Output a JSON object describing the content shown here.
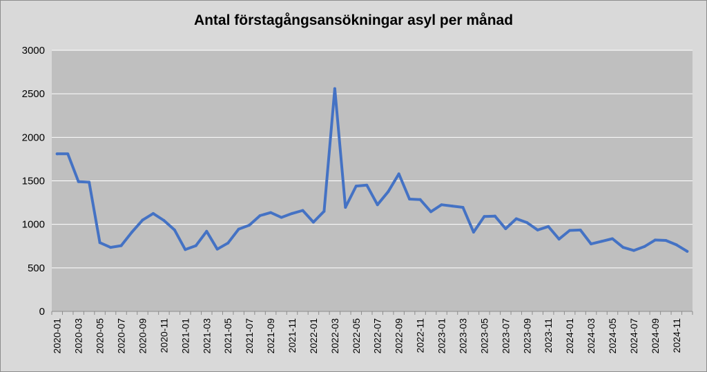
{
  "chart_data": {
    "type": "line",
    "title": "Antal förstagångsansökningar asyl per månad",
    "xlabel": "",
    "ylabel": "",
    "ylim": [
      0,
      3000
    ],
    "yticks": [
      0,
      500,
      1000,
      1500,
      2000,
      2500,
      3000
    ],
    "grid": true,
    "legend": "none",
    "colors": {
      "line": "#4472c4",
      "plot_bg": "#bfbfbf",
      "grid": "#ffffff"
    },
    "x": [
      "2020-01",
      "2020-02",
      "2020-03",
      "2020-04",
      "2020-05",
      "2020-06",
      "2020-07",
      "2020-08",
      "2020-09",
      "2020-10",
      "2020-11",
      "2020-12",
      "2021-01",
      "2021-02",
      "2021-03",
      "2021-04",
      "2021-05",
      "2021-06",
      "2021-07",
      "2021-08",
      "2021-09",
      "2021-10",
      "2021-11",
      "2021-12",
      "2022-01",
      "2022-02",
      "2022-03",
      "2022-04",
      "2022-05",
      "2022-06",
      "2022-07",
      "2022-08",
      "2022-09",
      "2022-10",
      "2022-11",
      "2022-12",
      "2023-01",
      "2023-02",
      "2023-03",
      "2023-04",
      "2023-05",
      "2023-06",
      "2023-07",
      "2023-08",
      "2023-09",
      "2023-10",
      "2023-11",
      "2023-12",
      "2024-01",
      "2024-02",
      "2024-03",
      "2024-04",
      "2024-05",
      "2024-06",
      "2024-07",
      "2024-08",
      "2024-09",
      "2024-10",
      "2024-11",
      "2024-12"
    ],
    "x_tick_labels": [
      "2020-01",
      "2020-03",
      "2020-05",
      "2020-07",
      "2020-09",
      "2020-11",
      "2021-01",
      "2021-03",
      "2021-05",
      "2021-07",
      "2021-09",
      "2021-11",
      "2022-01",
      "2022-03",
      "2022-05",
      "2022-07",
      "2022-09",
      "2022-11",
      "2023-01",
      "2023-03",
      "2023-05",
      "2023-07",
      "2023-09",
      "2023-11",
      "2024-01",
      "2024-03",
      "2024-05",
      "2024-07",
      "2024-09",
      "2024-11"
    ],
    "series": [
      {
        "values": [
          1810,
          1810,
          1490,
          1485,
          790,
          735,
          755,
          910,
          1050,
          1125,
          1045,
          935,
          710,
          755,
          920,
          715,
          785,
          945,
          990,
          1100,
          1135,
          1080,
          1125,
          1160,
          1025,
          1150,
          2560,
          1195,
          1440,
          1450,
          1225,
          1375,
          1580,
          1290,
          1285,
          1145,
          1225,
          1210,
          1195,
          910,
          1090,
          1095,
          950,
          1065,
          1020,
          935,
          975,
          830,
          930,
          935,
          775,
          805,
          835,
          735,
          700,
          745,
          820,
          815,
          765,
          690
        ]
      }
    ]
  }
}
